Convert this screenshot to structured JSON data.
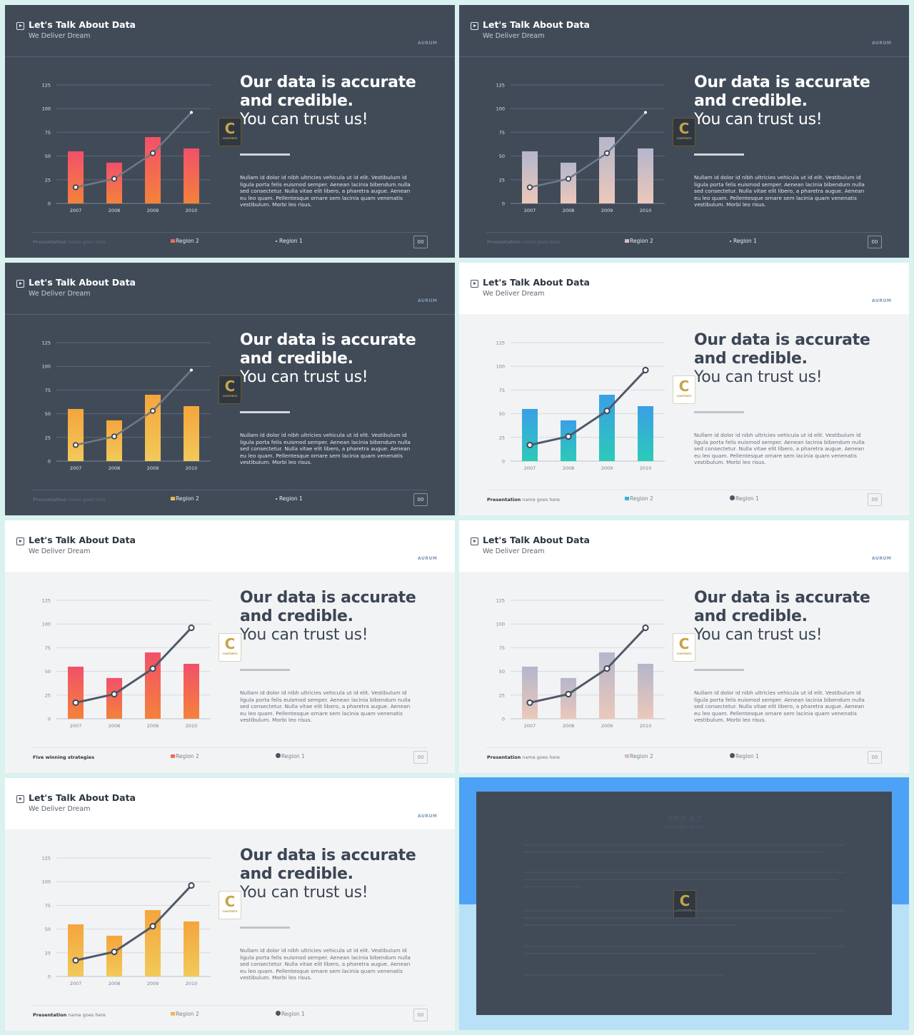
{
  "slide_title": "Let's Talk About Data",
  "slide_subtitle": "We Deliver Dream",
  "brand": "AURUM",
  "headline_line1": "Our data is accurate",
  "headline_line2": "and credible.",
  "headline_line3": "You can trust us!",
  "body_text": "Nullam id dolor id nibh ultricies vehicula ut id elit. Vestibulum id ligula porta felis euismod semper. Aenean lacinia bibendum nulla sed consectetur. Nulla vitae elit libero, a pharetra augue. Aenean eu leo quam. Pellentesque ornare sem lacinia quam venenatis vestibulum. Morbi leo risus.",
  "badge_letter": "C",
  "badge_text": "CONTENTS",
  "footer_bold": "Presentation",
  "footer_rest": "name goes here",
  "footer_alt": "Five winning strategies",
  "legend_bar": "Region 2",
  "legend_line": "Region 1",
  "page_number": "00",
  "copyright_title": "저작권 공고",
  "copyright_subtitle": "Copyright Notice",
  "colors": {
    "dark_bg": "#414b58",
    "light_bg": "#f2f3f5",
    "red_gradient": [
      "#f2506a",
      "#f4823a"
    ],
    "mauve_gradient": [
      "#b4b6cc",
      "#ecc8ba"
    ],
    "orange_gradient": [
      "#f4a53c",
      "#f2c95a"
    ],
    "teal_gradient": [
      "#3a9fe6",
      "#2ccab8"
    ],
    "copyright_top": "#4da2f5",
    "copyright_bottom": "#b8e0f6"
  },
  "chart_data": {
    "type": "bar",
    "categories": [
      "2007",
      "2008",
      "2009",
      "2010"
    ],
    "series": [
      {
        "name": "Region 2",
        "type": "bar",
        "values": [
          55,
          43,
          70,
          58
        ]
      },
      {
        "name": "Region 1",
        "type": "line",
        "values": [
          17,
          26,
          53,
          96
        ]
      }
    ],
    "yticks": [
      0,
      25,
      50,
      75,
      100,
      125
    ],
    "ylim": [
      0,
      125
    ],
    "grid": true
  }
}
